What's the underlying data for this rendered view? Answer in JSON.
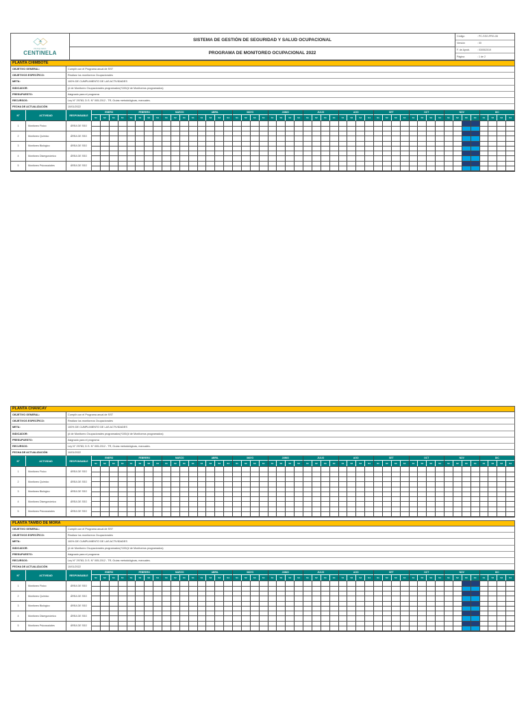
{
  "header": {
    "logo": {
      "sub": "PESQUERA",
      "name": "CENTINELA"
    },
    "title": "SISTEMA DE GESTIÓN DE SEGURIDAD Y SALUD OCUPACIONAL",
    "subtitle": "PROGRAMA DE MONITOREO OCUPACIONAL 2022",
    "meta": [
      {
        "label": "Código",
        "value": ": PC-SSO-PRG-06"
      },
      {
        "label": "Versión",
        "value": ": 00"
      },
      {
        "label": "F. de Aprob.",
        "value": ": 03/05/2019"
      },
      {
        "label": "Página",
        "value": ": 1 de 2"
      }
    ]
  },
  "labels": {
    "objetivo_general": "OBJETIVO GENERAL:",
    "objetivos_especifico": "OBJETIVOS ESPECÍFICO:",
    "meta": "META:",
    "indicador": "INDICADOR:",
    "presupuesto": "PRESUPUESTO:",
    "recursos": "RECURSOS:",
    "fecha": "FECHA DE ACTUALIZACIÓN",
    "col_n": "N°",
    "col_actividad": "ACTIVIDAD",
    "col_responsable": "RESPONSABLE"
  },
  "months": [
    "ENERO",
    "FEBRERO",
    "MARZO",
    "ABRIL",
    "MAYO",
    "JUNIO",
    "JULIO",
    "AGO",
    "SET",
    "OCT",
    "NOV",
    "DIC"
  ],
  "weeks": [
    "S1",
    "S2",
    "S3",
    "S4"
  ],
  "colors": {
    "plant_bar": "#ffc000",
    "header_teal": "#008080",
    "programmed": "#1f3f7a",
    "executed": "#00a3e6"
  },
  "plants": [
    {
      "name": "PLANTA CHIMBOTE",
      "objetivo_general": "Cumplir con el Programa anual de SST",
      "objetivos_especifico": "Realizar los monitoreos Ocupacionales",
      "meta": "100% DE CUMPLIMIENTO DE LAS ACTIVIDADES",
      "indicador": "(# de Monitoreo Ocupacionales programados)*100/(# de Monitoreos programados)",
      "presupuesto": "Asignado para el programa",
      "recursos": "Ley N° 29783, D.S. N° 005-2012 - TR, Guías metodológicas, manuales.",
      "fecha": "10/01/2022",
      "nov_marked": true,
      "activities": [
        {
          "n": "1",
          "name": "Monitoreo Físico",
          "resp": "ÁREA DE SSO"
        },
        {
          "n": "2",
          "name": "Monitoreo Químico",
          "resp": "ÁREA DE SSO"
        },
        {
          "n": "3",
          "name": "Monitoreo Biológico",
          "resp": "ÁREA DE SSO"
        },
        {
          "n": "4",
          "name": "Monitoreo Disergonómico",
          "resp": "ÁREA DE SSO"
        },
        {
          "n": "5",
          "name": "Monitoreo Psicosociales",
          "resp": "ÁREA DE SSO"
        }
      ]
    },
    {
      "name": "PLANTA CHANCAY",
      "objetivo_general": "Cumplir con el Programa anual de SST",
      "objetivos_especifico": "Realizar los monitoreos Ocupacionales",
      "meta": "100% DE CUMPLIMIENTO DE LAS ACTIVIDADES",
      "indicador": "(# de Monitoreo Ocupacionales programados)*100/(# de Monitoreos programados)",
      "presupuesto": "Asignado para el programa",
      "recursos": "Ley N° 29783, D.S. N° 005-2012 - TR, Guías metodológicas, manuales.",
      "fecha": "10/01/2022",
      "nov_marked": false,
      "activities": [
        {
          "n": "1",
          "name": "Monitoreo Físico",
          "resp": "ÁREA DE SSO"
        },
        {
          "n": "2",
          "name": "Monitoreo Químico",
          "resp": "ÁREA DE SSO"
        },
        {
          "n": "3",
          "name": "Monitoreo Biológico",
          "resp": "ÁREA DE SSO"
        },
        {
          "n": "4",
          "name": "Monitoreo Disergonómico",
          "resp": "ÁREA DE SSO"
        },
        {
          "n": "5",
          "name": "Monitoreo Psicosociales",
          "resp": "ÁREA DE SSO"
        }
      ]
    },
    {
      "name": "PLANTA TAMBO DE MORA",
      "objetivo_general": "Cumplir con el Programa anual de SST",
      "objetivos_especifico": "Realizar los monitoreos Ocupacionales",
      "meta": "100% DE CUMPLIMIENTO DE LAS ACTIVIDADES",
      "indicador": "(# de Monitoreo Ocupacionales programados)*100/(# de Monitoreos programados)",
      "presupuesto": "Asignado para el programa",
      "recursos": "Ley N° 29783, D.S. N° 005-2012 - TR, Guías metodológicas, manuales.",
      "fecha": "10/01/2022",
      "nov_marked": true,
      "activities": [
        {
          "n": "1",
          "name": "Monitoreo Físico",
          "resp": "ÁREA DE SSO"
        },
        {
          "n": "2",
          "name": "Monitoreo Químico",
          "resp": "ÁREA DE SSO"
        },
        {
          "n": "3",
          "name": "Monitoreo Biológico",
          "resp": "ÁREA DE SSO"
        },
        {
          "n": "4",
          "name": "Monitoreo Disergonómico",
          "resp": "ÁREA DE SSO"
        },
        {
          "n": "5",
          "name": "Monitoreo Psicosociales",
          "resp": "ÁREA DE SSO"
        }
      ]
    }
  ]
}
